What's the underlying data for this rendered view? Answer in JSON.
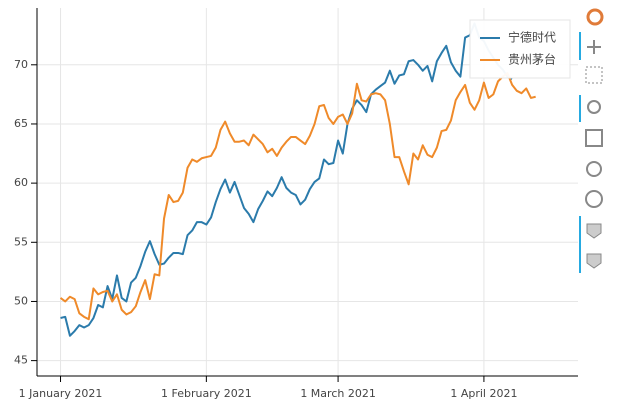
{
  "chart_data": {
    "type": "line",
    "x": [
      "2021-01-01",
      "2021-01-02",
      "2021-01-03",
      "2021-01-04",
      "2021-01-05",
      "2021-01-06",
      "2021-01-07",
      "2021-01-08",
      "2021-01-09",
      "2021-01-10",
      "2021-01-11",
      "2021-01-12",
      "2021-01-13",
      "2021-01-14",
      "2021-01-15",
      "2021-01-16",
      "2021-01-17",
      "2021-01-18",
      "2021-01-19",
      "2021-01-20",
      "2021-01-21",
      "2021-01-22",
      "2021-01-23",
      "2021-01-24",
      "2021-01-25",
      "2021-01-26",
      "2021-01-27",
      "2021-01-28",
      "2021-01-29",
      "2021-01-30",
      "2021-01-31",
      "2021-02-01",
      "2021-02-02",
      "2021-02-03",
      "2021-02-04",
      "2021-02-05",
      "2021-02-06",
      "2021-02-07",
      "2021-02-08",
      "2021-02-09",
      "2021-02-10",
      "2021-02-11",
      "2021-02-12",
      "2021-02-13",
      "2021-02-14",
      "2021-02-15",
      "2021-02-16",
      "2021-02-17",
      "2021-02-18",
      "2021-02-19",
      "2021-02-20",
      "2021-02-21",
      "2021-02-22",
      "2021-02-23",
      "2021-02-24",
      "2021-02-25",
      "2021-02-26",
      "2021-02-27",
      "2021-02-28",
      "2021-03-01",
      "2021-03-02",
      "2021-03-03",
      "2021-03-04",
      "2021-03-05",
      "2021-03-06",
      "2021-03-07",
      "2021-03-08",
      "2021-03-09",
      "2021-03-10",
      "2021-03-11",
      "2021-03-12",
      "2021-03-13",
      "2021-03-14",
      "2021-03-15",
      "2021-03-16",
      "2021-03-17",
      "2021-03-18",
      "2021-03-19",
      "2021-03-20",
      "2021-03-21",
      "2021-03-22",
      "2021-03-23",
      "2021-03-24",
      "2021-03-25",
      "2021-03-26",
      "2021-03-27",
      "2021-03-28",
      "2021-03-29",
      "2021-03-30",
      "2021-03-31",
      "2021-04-01",
      "2021-04-02",
      "2021-04-03",
      "2021-04-04",
      "2021-04-05",
      "2021-04-06",
      "2021-04-07",
      "2021-04-08",
      "2021-04-09",
      "2021-04-10",
      "2021-04-11",
      "2021-04-12"
    ],
    "series": [
      {
        "name": "宁德时代",
        "color": "#2b7bab",
        "values": [
          48.6,
          48.7,
          47.1,
          47.5,
          48.0,
          47.8,
          48.0,
          48.6,
          49.7,
          49.5,
          51.3,
          50.2,
          52.2,
          50.3,
          50.0,
          51.6,
          52.0,
          53.0,
          54.2,
          55.1,
          54.0,
          53.1,
          53.2,
          53.7,
          54.1,
          54.1,
          54.0,
          55.6,
          56.0,
          56.7,
          56.7,
          56.5,
          57.1,
          58.4,
          59.5,
          60.3,
          59.2,
          60.1,
          59.0,
          57.9,
          57.4,
          56.7,
          57.8,
          58.5,
          59.3,
          58.9,
          59.6,
          60.5,
          59.6,
          59.2,
          59.0,
          58.2,
          58.6,
          59.5,
          60.1,
          60.4,
          62.0,
          61.6,
          61.7,
          63.6,
          62.5,
          65.0,
          66.3,
          67.0,
          66.6,
          66.0,
          67.5,
          67.9,
          68.2,
          68.5,
          69.5,
          68.4,
          69.1,
          69.2,
          70.3,
          70.4,
          70.0,
          69.5,
          69.9,
          68.6,
          70.3,
          71.0,
          71.6,
          70.2,
          69.5,
          69.0,
          72.3,
          72.5,
          73.5,
          72.3,
          72.0,
          71.2,
          70.6,
          70.0,
          69.6,
          69.0,
          68.8,
          null,
          null,
          null,
          null,
          null
        ]
      },
      {
        "name": "贵州茅台",
        "color": "#ef8a2a",
        "values": [
          50.3,
          50.0,
          50.4,
          50.2,
          49.0,
          48.7,
          48.5,
          51.1,
          50.6,
          50.8,
          50.9,
          50.0,
          50.6,
          49.3,
          48.9,
          49.1,
          49.6,
          50.8,
          51.8,
          50.2,
          52.3,
          52.2,
          57.0,
          59.0,
          58.4,
          58.5,
          59.2,
          61.3,
          62.0,
          61.8,
          62.1,
          62.2,
          62.3,
          63.0,
          64.5,
          65.2,
          64.2,
          63.5,
          63.5,
          63.6,
          63.2,
          64.1,
          63.7,
          63.3,
          62.6,
          62.9,
          62.3,
          63.0,
          63.5,
          63.9,
          63.9,
          63.6,
          63.3,
          64.0,
          65.0,
          66.5,
          66.6,
          65.5,
          65.0,
          65.6,
          65.8,
          65.0,
          65.9,
          68.4,
          67.0,
          66.9,
          67.5,
          67.6,
          67.5,
          67.0,
          65.0,
          62.2,
          62.2,
          61.0,
          59.9,
          62.5,
          62.0,
          63.2,
          62.4,
          62.2,
          63.0,
          64.4,
          64.5,
          65.3,
          67.0,
          67.7,
          68.3,
          66.8,
          66.2,
          67.0,
          68.5,
          67.2,
          67.5,
          68.6,
          69.0,
          69.3,
          68.3,
          67.8,
          67.6,
          68.0,
          67.2,
          67.3
        ]
      }
    ],
    "xlim": [
      "2020-12-27",
      "2021-04-21"
    ],
    "xticks": [
      {
        "value": "2021-01-01",
        "label": "1 January 2021"
      },
      {
        "value": "2021-02-01",
        "label": "1 February 2021"
      },
      {
        "value": "2021-03-01",
        "label": "1 March 2021"
      },
      {
        "value": "2021-04-01",
        "label": "1 April 2021"
      }
    ],
    "ylim": [
      43.7,
      74.8
    ],
    "yticks": [
      45,
      50,
      55,
      60,
      65,
      70
    ],
    "grid": true,
    "legend": "top-right"
  }
}
